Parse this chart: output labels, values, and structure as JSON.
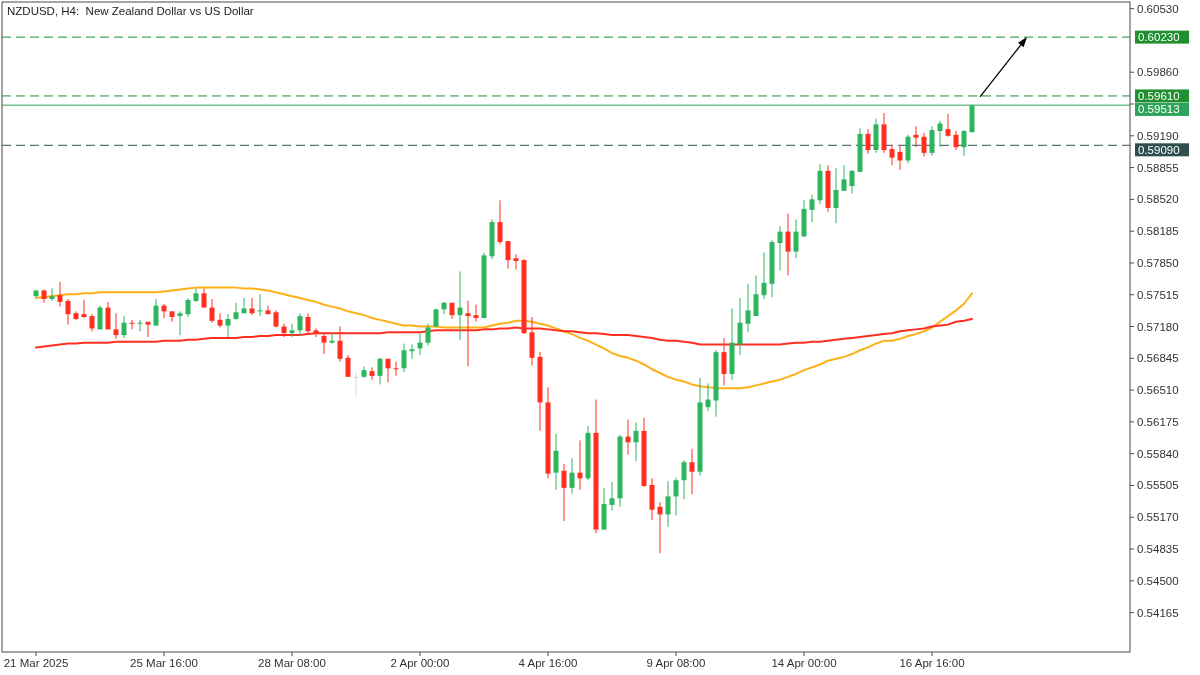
{
  "chart_data": {
    "type": "candlestick",
    "title": "NZDUSD, H4:  New Zealand Dollar vs US Dollar",
    "categories": [
      "21 Mar 2025",
      null,
      null,
      null,
      null,
      null,
      null,
      null,
      null,
      null,
      null,
      null,
      null,
      null,
      null,
      null,
      "25 Mar 16:00",
      null,
      null,
      null,
      null,
      null,
      null,
      null,
      null,
      null,
      null,
      null,
      null,
      null,
      null,
      null,
      "28 Mar 08:00",
      null,
      null,
      null,
      null,
      null,
      null,
      null,
      null,
      null,
      null,
      null,
      null,
      null,
      null,
      null,
      "2 Apr 00:00",
      null,
      null,
      null,
      null,
      null,
      null,
      null,
      null,
      null,
      null,
      null,
      null,
      null,
      null,
      null,
      "4 Apr 16:00",
      null,
      null,
      null,
      null,
      null,
      null,
      null,
      null,
      null,
      null,
      null,
      null,
      null,
      null,
      null,
      "9 Apr 08:00",
      null,
      null,
      null,
      null,
      null,
      null,
      null,
      null,
      null,
      null,
      null,
      null,
      null,
      null,
      null,
      "14 Apr 00:00",
      null,
      null,
      null,
      null,
      null,
      null,
      null,
      null,
      null,
      null,
      null,
      null,
      null,
      null,
      null,
      "16 Apr 16:00",
      null,
      null,
      null,
      null,
      null
    ],
    "ohlc": [
      [
        0.575,
        0.5756,
        0.5749,
        0.5756
      ],
      [
        0.5756,
        0.5757,
        0.5743,
        0.5747
      ],
      [
        0.5747,
        0.5758,
        0.5745,
        0.575
      ],
      [
        0.5751,
        0.5765,
        0.5739,
        0.5744
      ],
      [
        0.5745,
        0.5747,
        0.572,
        0.5731
      ],
      [
        0.5732,
        0.5734,
        0.5725,
        0.5726
      ],
      [
        0.5731,
        0.5746,
        0.5727,
        0.5728
      ],
      [
        0.5729,
        0.5731,
        0.5713,
        0.5716
      ],
      [
        0.5715,
        0.574,
        0.5715,
        0.5738
      ],
      [
        0.5738,
        0.5744,
        0.5715,
        0.5715
      ],
      [
        0.5715,
        0.5732,
        0.5705,
        0.5709
      ],
      [
        0.5709,
        0.5729,
        0.5706,
        0.5722
      ],
      [
        0.5722,
        0.5725,
        0.5715,
        0.5721
      ],
      [
        0.5721,
        0.5725,
        0.5713,
        0.5722
      ],
      [
        0.5723,
        0.5723,
        0.5707,
        0.572
      ],
      [
        0.5719,
        0.5747,
        0.5719,
        0.574
      ],
      [
        0.574,
        0.5742,
        0.5727,
        0.5734
      ],
      [
        0.5734,
        0.5734,
        0.5723,
        0.5728
      ],
      [
        0.5729,
        0.5734,
        0.5709,
        0.5732
      ],
      [
        0.5731,
        0.5748,
        0.5728,
        0.5746
      ],
      [
        0.5745,
        0.5758,
        0.5744,
        0.5753
      ],
      [
        0.5753,
        0.5758,
        0.5738,
        0.5738
      ],
      [
        0.5738,
        0.5747,
        0.5722,
        0.5724
      ],
      [
        0.5725,
        0.5732,
        0.5717,
        0.5719
      ],
      [
        0.5719,
        0.5731,
        0.5707,
        0.5726
      ],
      [
        0.5726,
        0.5743,
        0.5725,
        0.5733
      ],
      [
        0.5732,
        0.5748,
        0.5732,
        0.5737
      ],
      [
        0.5737,
        0.5748,
        0.573,
        0.5732
      ],
      [
        0.5734,
        0.5752,
        0.5729,
        0.5735
      ],
      [
        0.5735,
        0.574,
        0.5731,
        0.5731
      ],
      [
        0.5733,
        0.5735,
        0.5717,
        0.5718
      ],
      [
        0.5718,
        0.5721,
        0.5707,
        0.5711
      ],
      [
        0.5711,
        0.5721,
        0.5707,
        0.5714
      ],
      [
        0.5714,
        0.5732,
        0.5708,
        0.5729
      ],
      [
        0.5728,
        0.5732,
        0.571,
        0.5713
      ],
      [
        0.5714,
        0.5716,
        0.5707,
        0.5711
      ],
      [
        0.5708,
        0.5711,
        0.5689,
        0.5701
      ],
      [
        0.5701,
        0.5711,
        0.57,
        0.5703
      ],
      [
        0.5703,
        0.5718,
        0.5681,
        0.5684
      ],
      [
        0.5685,
        0.5688,
        0.5665,
        0.5665
      ],
      [
        0.5665,
        0.567,
        0.5644,
        0.5665
      ],
      [
        0.5665,
        0.5676,
        0.5664,
        0.5672
      ],
      [
        0.5671,
        0.5675,
        0.5662,
        0.5666
      ],
      [
        0.5666,
        0.5685,
        0.5657,
        0.5684
      ],
      [
        0.5684,
        0.5684,
        0.5659,
        0.5674
      ],
      [
        0.5674,
        0.5681,
        0.5666,
        0.5673
      ],
      [
        0.5674,
        0.57,
        0.567,
        0.5693
      ],
      [
        0.5692,
        0.5699,
        0.5684,
        0.5694
      ],
      [
        0.5695,
        0.5711,
        0.5688,
        0.5701
      ],
      [
        0.5701,
        0.5721,
        0.5698,
        0.5717
      ],
      [
        0.5718,
        0.5737,
        0.5717,
        0.5736
      ],
      [
        0.5736,
        0.5744,
        0.5731,
        0.5743
      ],
      [
        0.5743,
        0.5743,
        0.5726,
        0.573
      ],
      [
        0.573,
        0.5776,
        0.5704,
        0.5738
      ],
      [
        0.5732,
        0.5745,
        0.5676,
        0.5729
      ],
      [
        0.573,
        0.5741,
        0.5723,
        0.5727
      ],
      [
        0.5727,
        0.5796,
        0.5727,
        0.5793
      ],
      [
        0.5792,
        0.5831,
        0.5789,
        0.5828
      ],
      [
        0.5828,
        0.5851,
        0.5805,
        0.5807
      ],
      [
        0.5808,
        0.5808,
        0.5779,
        0.5788
      ],
      [
        0.579,
        0.5794,
        0.5778,
        0.5787
      ],
      [
        0.5788,
        0.5789,
        0.571,
        0.5711
      ],
      [
        0.5712,
        0.5728,
        0.5677,
        0.5685
      ],
      [
        0.5686,
        0.5691,
        0.5608,
        0.5638
      ],
      [
        0.5638,
        0.5654,
        0.5558,
        0.5563
      ],
      [
        0.5564,
        0.5605,
        0.5546,
        0.5587
      ],
      [
        0.5566,
        0.5573,
        0.5513,
        0.5548
      ],
      [
        0.5548,
        0.5579,
        0.5542,
        0.5564
      ],
      [
        0.5564,
        0.5598,
        0.5546,
        0.5558
      ],
      [
        0.5558,
        0.5613,
        0.5556,
        0.5606
      ],
      [
        0.5606,
        0.5641,
        0.55,
        0.5504
      ],
      [
        0.5504,
        0.5548,
        0.5504,
        0.5531
      ],
      [
        0.553,
        0.5554,
        0.5524,
        0.5537
      ],
      [
        0.5537,
        0.5604,
        0.5528,
        0.5602
      ],
      [
        0.5602,
        0.562,
        0.5583,
        0.5596
      ],
      [
        0.5596,
        0.5617,
        0.5576,
        0.5608
      ],
      [
        0.5608,
        0.5622,
        0.5549,
        0.555
      ],
      [
        0.5551,
        0.5558,
        0.5514,
        0.5525
      ],
      [
        0.5528,
        0.5533,
        0.5479,
        0.552
      ],
      [
        0.552,
        0.5555,
        0.5507,
        0.5539
      ],
      [
        0.5539,
        0.5559,
        0.5519,
        0.5556
      ],
      [
        0.5556,
        0.5577,
        0.5536,
        0.5575
      ],
      [
        0.5575,
        0.5589,
        0.5541,
        0.5565
      ],
      [
        0.5565,
        0.5664,
        0.5561,
        0.5638
      ],
      [
        0.5633,
        0.5658,
        0.5629,
        0.5641
      ],
      [
        0.564,
        0.5693,
        0.5623,
        0.5691
      ],
      [
        0.5691,
        0.5706,
        0.5656,
        0.5668
      ],
      [
        0.5668,
        0.5737,
        0.5662,
        0.5701
      ],
      [
        0.5699,
        0.5748,
        0.5688,
        0.5722
      ],
      [
        0.5721,
        0.5763,
        0.5712,
        0.5735
      ],
      [
        0.5729,
        0.5772,
        0.5729,
        0.5752
      ],
      [
        0.5751,
        0.5796,
        0.5747,
        0.5764
      ],
      [
        0.5763,
        0.5809,
        0.5749,
        0.5807
      ],
      [
        0.5806,
        0.5824,
        0.5777,
        0.5818
      ],
      [
        0.5818,
        0.5837,
        0.5772,
        0.5797
      ],
      [
        0.5797,
        0.5831,
        0.579,
        0.5818
      ],
      [
        0.5813,
        0.5851,
        0.5812,
        0.5842
      ],
      [
        0.5841,
        0.5857,
        0.5828,
        0.5852
      ],
      [
        0.5851,
        0.5889,
        0.5847,
        0.5882
      ],
      [
        0.5882,
        0.5888,
        0.5839,
        0.5843
      ],
      [
        0.5843,
        0.5885,
        0.5827,
        0.5862
      ],
      [
        0.5861,
        0.5888,
        0.5861,
        0.5873
      ],
      [
        0.5866,
        0.5883,
        0.5858,
        0.5882
      ],
      [
        0.5881,
        0.5927,
        0.5881,
        0.5921
      ],
      [
        0.5921,
        0.5926,
        0.59,
        0.5904
      ],
      [
        0.5904,
        0.5937,
        0.5901,
        0.5931
      ],
      [
        0.5931,
        0.5943,
        0.5901,
        0.5904
      ],
      [
        0.5905,
        0.5909,
        0.5888,
        0.5896
      ],
      [
        0.5902,
        0.5908,
        0.5883,
        0.5893
      ],
      [
        0.5893,
        0.592,
        0.589,
        0.5918
      ],
      [
        0.592,
        0.5929,
        0.5907,
        0.5917
      ],
      [
        0.5918,
        0.5922,
        0.5897,
        0.5901
      ],
      [
        0.5901,
        0.5929,
        0.5898,
        0.5925
      ],
      [
        0.5924,
        0.5935,
        0.5907,
        0.5932
      ],
      [
        0.5926,
        0.5942,
        0.5918,
        0.5919
      ],
      [
        0.592,
        0.5924,
        0.5904,
        0.5907
      ],
      [
        0.5907,
        0.5925,
        0.5898,
        0.5924
      ],
      [
        0.5923,
        0.5952,
        0.5922,
        0.5951
      ]
    ],
    "colors": [
      "#2db55d",
      "#ff2e1f",
      "#2db55d",
      "#ff2e1f",
      "#ff2e1f",
      "#ff2e1f",
      "#ff2e1f",
      "#ff2e1f",
      "#2db55d",
      "#ff2e1f",
      "#ff2e1f",
      "#2db55d",
      "#ff2e1f",
      "#2db55d",
      "#ff2e1f",
      "#2db55d",
      "#ff2e1f",
      "#ff2e1f",
      "#2db55d",
      "#2db55d",
      "#2db55d",
      "#ff2e1f",
      "#ff2e1f",
      "#ff2e1f",
      "#2db55d",
      "#2db55d",
      "#2db55d",
      "#ff2e1f",
      "#2db55d",
      "#ff2e1f",
      "#ff2e1f",
      "#ff2e1f",
      "#2db55d",
      "#2db55d",
      "#ff2e1f",
      "#ff2e1f",
      "#ff2e1f",
      "#2db55d",
      "#ff2e1f",
      "#ff2e1f",
      "#d9d9d9",
      "#2db55d",
      "#ff2e1f",
      "#2db55d",
      "#ff2e1f",
      "#ff2e1f",
      "#2db55d",
      "#2db55d",
      "#2db55d",
      "#2db55d",
      "#2db55d",
      "#2db55d",
      "#ff2e1f",
      "#2db55d",
      "#ff2e1f",
      "#ff2e1f",
      "#2db55d",
      "#2db55d",
      "#ff2e1f",
      "#ff2e1f",
      "#ff2e1f",
      "#ff2e1f",
      "#ff2e1f",
      "#ff2e1f",
      "#ff2e1f",
      "#2db55d",
      "#ff2e1f",
      "#2db55d",
      "#ff2e1f",
      "#2db55d",
      "#ff2e1f",
      "#2db55d",
      "#2db55d",
      "#2db55d",
      "#ff2e1f",
      "#2db55d",
      "#ff2e1f",
      "#ff2e1f",
      "#ff2e1f",
      "#2db55d",
      "#2db55d",
      "#2db55d",
      "#ff2e1f",
      "#2db55d",
      "#2db55d",
      "#2db55d",
      "#ff2e1f",
      "#2db55d",
      "#2db55d",
      "#2db55d",
      "#2db55d",
      "#2db55d",
      "#2db55d",
      "#2db55d",
      "#ff2e1f",
      "#2db55d",
      "#2db55d",
      "#2db55d",
      "#2db55d",
      "#ff2e1f",
      "#2db55d",
      "#2db55d",
      "#2db55d",
      "#2db55d",
      "#ff2e1f",
      "#2db55d",
      "#ff2e1f",
      "#ff2e1f",
      "#ff2e1f",
      "#2db55d",
      "#ff2e1f",
      "#ff2e1f",
      "#2db55d",
      "#2db55d",
      "#ff2e1f",
      "#ff2e1f",
      "#2db55d",
      "#2db55d"
    ],
    "series": [
      {
        "type": "line",
        "color": "#fbb117",
        "values": [
          0.5748,
          0.5749,
          0.575,
          0.5751,
          0.5752,
          0.5752,
          0.5753,
          0.5753,
          0.5754,
          0.5754,
          0.5754,
          0.5754,
          0.5754,
          0.5754,
          0.5754,
          0.5754,
          0.5755,
          0.5756,
          0.5757,
          0.5758,
          0.5759,
          0.5759,
          0.5759,
          0.5759,
          0.5759,
          0.5759,
          0.5758,
          0.5758,
          0.5757,
          0.5756,
          0.5754,
          0.5752,
          0.575,
          0.5748,
          0.5746,
          0.5744,
          0.5741,
          0.5739,
          0.5737,
          0.5734,
          0.5732,
          0.573,
          0.5727,
          0.5725,
          0.5723,
          0.5721,
          0.5719,
          0.5719,
          0.5718,
          0.5718,
          0.5718,
          0.5717,
          0.5717,
          0.5717,
          0.5717,
          0.5717,
          0.5717,
          0.5719,
          0.5721,
          0.5722,
          0.5724,
          0.5724,
          0.5723,
          0.5721,
          0.5719,
          0.5716,
          0.5713,
          0.571,
          0.5706,
          0.5703,
          0.5699,
          0.5695,
          0.569,
          0.5687,
          0.5685,
          0.5682,
          0.5678,
          0.5673,
          0.5669,
          0.5665,
          0.5662,
          0.566,
          0.5657,
          0.5655,
          0.5654,
          0.5653,
          0.5653,
          0.5653,
          0.5653,
          0.5654,
          0.5656,
          0.5658,
          0.566,
          0.5662,
          0.5665,
          0.5668,
          0.5672,
          0.5675,
          0.5678,
          0.5682,
          0.5684,
          0.5686,
          0.5689,
          0.5693,
          0.5696,
          0.57,
          0.5703,
          0.5703,
          0.5705,
          0.5708,
          0.571,
          0.5713,
          0.5717,
          0.5723,
          0.5729,
          0.5735,
          0.5742,
          0.5753
        ]
      },
      {
        "type": "line",
        "color": "#ff2e1f",
        "values": [
          0.5696,
          0.5697,
          0.5698,
          0.5699,
          0.57,
          0.57,
          0.5701,
          0.5701,
          0.5701,
          0.5701,
          0.5702,
          0.5702,
          0.5702,
          0.5702,
          0.5702,
          0.5702,
          0.5703,
          0.5703,
          0.5703,
          0.5704,
          0.5704,
          0.5705,
          0.5706,
          0.5706,
          0.5706,
          0.5706,
          0.5707,
          0.5707,
          0.5708,
          0.5708,
          0.5709,
          0.5709,
          0.5709,
          0.5709,
          0.571,
          0.5711,
          0.5711,
          0.5711,
          0.5711,
          0.5711,
          0.5711,
          0.5711,
          0.5711,
          0.5711,
          0.5712,
          0.5712,
          0.5712,
          0.5712,
          0.5712,
          0.5713,
          0.5714,
          0.5714,
          0.5714,
          0.5714,
          0.5714,
          0.5714,
          0.5715,
          0.5715,
          0.5716,
          0.5716,
          0.5717,
          0.5716,
          0.5716,
          0.5716,
          0.5715,
          0.5714,
          0.5713,
          0.5713,
          0.5712,
          0.5711,
          0.5711,
          0.571,
          0.5709,
          0.5709,
          0.5709,
          0.5708,
          0.5707,
          0.5706,
          0.5704,
          0.5703,
          0.5703,
          0.5702,
          0.5701,
          0.5699,
          0.5699,
          0.5699,
          0.5699,
          0.5699,
          0.5699,
          0.5699,
          0.5699,
          0.5699,
          0.5699,
          0.5699,
          0.57,
          0.5701,
          0.5701,
          0.5702,
          0.5702,
          0.5703,
          0.5704,
          0.5705,
          0.5706,
          0.5707,
          0.5708,
          0.5709,
          0.571,
          0.5711,
          0.5713,
          0.5714,
          0.5715,
          0.5716,
          0.5718,
          0.5719,
          0.572,
          0.5723,
          0.5724,
          0.5726
        ]
      }
    ],
    "ylim": [
      0.5375,
      0.606
    ],
    "yticks": [
      {
        "value": 0.6053,
        "label": "0.60530"
      },
      {
        "value": 0.5986,
        "label": "0.59860"
      },
      {
        "value": 0.59525,
        "label": null
      },
      {
        "value": 0.5919,
        "label": "0.59190"
      },
      {
        "value": 0.58855,
        "label": "0.58855"
      },
      {
        "value": 0.5852,
        "label": "0.58520"
      },
      {
        "value": 0.58185,
        "label": "0.58185"
      },
      {
        "value": 0.5785,
        "label": "0.57850"
      },
      {
        "value": 0.57515,
        "label": "0.57515"
      },
      {
        "value": 0.5718,
        "label": "0.57180"
      },
      {
        "value": 0.56845,
        "label": "0.56845"
      },
      {
        "value": 0.5651,
        "label": "0.56510"
      },
      {
        "value": 0.56175,
        "label": "0.56175"
      },
      {
        "value": 0.5584,
        "label": "0.55840"
      },
      {
        "value": 0.55505,
        "label": "0.55505"
      },
      {
        "value": 0.5517,
        "label": "0.55170"
      },
      {
        "value": 0.54835,
        "label": "0.54835"
      },
      {
        "value": 0.545,
        "label": "0.54500"
      },
      {
        "value": 0.54165,
        "label": "0.54165"
      }
    ],
    "ref_lines": [
      {
        "axis": "y",
        "value": 0.6023,
        "label": "0.60230",
        "color": "#1f8f2f",
        "line_style": "dashed"
      },
      {
        "axis": "y",
        "value": 0.5961,
        "label": "0.59610",
        "color": "#1f8f2f",
        "line_style": "dashed"
      },
      {
        "axis": "y",
        "value": 0.59513,
        "label": "0.59513",
        "color": "#2fa35a",
        "line_style": "solid"
      },
      {
        "axis": "y",
        "value": 0.5909,
        "label": "0.59090",
        "color": "#2f4f4f",
        "line_style": "dashed"
      }
    ]
  }
}
